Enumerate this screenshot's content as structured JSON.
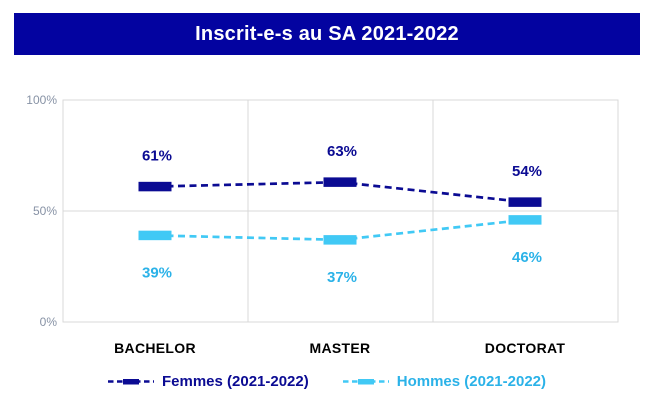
{
  "header": {
    "title": "Inscrit-e-s au SA 2021-2022"
  },
  "colors": {
    "background": "#FFFFFF",
    "title_bg": "#0303A0",
    "title_text": "#FFFFFF",
    "grid": "#D9D9D9",
    "tick_text": "#8792A5",
    "category_label_text": "#000000"
  },
  "chart_data": {
    "type": "line",
    "title": "Inscrit-e-s au SA 2021-2022",
    "categories": [
      "BACHELOR",
      "MASTER",
      "DOCTORAT"
    ],
    "series": [
      {
        "name": "Femmes (2021-2022)",
        "values": [
          61,
          63,
          54
        ],
        "labels": [
          "61%",
          "63%",
          "54%"
        ],
        "color": "#0B0B93",
        "label_color": "#0B0B93"
      },
      {
        "name": "Hommes (2021-2022)",
        "values": [
          39,
          37,
          46
        ],
        "labels": [
          "39%",
          "37%",
          "46%"
        ],
        "color": "#41C9F5",
        "label_color": "#2BB2E8"
      }
    ],
    "ylim": [
      0,
      100
    ],
    "yticks": [
      {
        "label": "100%",
        "value": 100
      },
      {
        "label": "50%",
        "value": 50
      },
      {
        "label": "0%",
        "value": 0
      }
    ],
    "grid": "on",
    "line_style": "dashed",
    "marker_style": "thick-dash",
    "legend_position": "bottom"
  }
}
